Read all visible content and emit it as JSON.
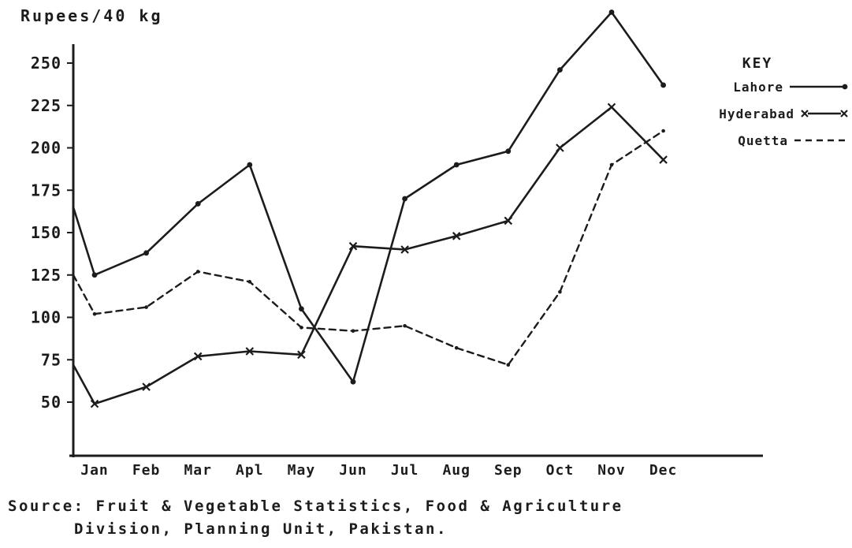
{
  "title": "Rupees/40 kg",
  "colors": {
    "ink": "#1c1c1c",
    "background": "#ffffff"
  },
  "legend": {
    "heading": "KEY",
    "entries": [
      {
        "label": "Lahore",
        "style": "solid-dot"
      },
      {
        "label": "Hyderabad",
        "style": "solid-x"
      },
      {
        "label": "Quetta",
        "style": "dashed"
      }
    ]
  },
  "source": {
    "line1": "Source: Fruit & Vegetable Statistics, Food & Agriculture",
    "line2": "Division, Planning Unit, Pakistan."
  },
  "chart_data": {
    "type": "line",
    "title": "Rupees/40 kg",
    "xlabel": "",
    "ylabel": "Rupees/40 kg",
    "categories": [
      "Jan",
      "Feb",
      "Mar",
      "Apl",
      "May",
      "Jun",
      "Jul",
      "Aug",
      "Sep",
      "Oct",
      "Nov",
      "Dec"
    ],
    "yticks": [
      250,
      225,
      200,
      175,
      150,
      125,
      100,
      75,
      50
    ],
    "ylim": [
      25,
      285
    ],
    "grid": false,
    "legend_position": "right",
    "series": [
      {
        "name": "Lahore",
        "line": "solid",
        "marker": "dot",
        "axis_start": 165,
        "values": [
          125,
          138,
          167,
          190,
          105,
          62,
          170,
          190,
          198,
          246,
          280,
          237
        ]
      },
      {
        "name": "Hyderabad",
        "line": "solid",
        "marker": "x",
        "axis_start": 72,
        "values": [
          49,
          59,
          77,
          80,
          78,
          142,
          140,
          148,
          157,
          200,
          224,
          193
        ]
      },
      {
        "name": "Quetta",
        "line": "dashed",
        "marker": "small-dot",
        "axis_start": 125,
        "values": [
          102,
          106,
          127,
          121,
          94,
          92,
          95,
          82,
          72,
          115,
          190,
          210
        ]
      }
    ]
  }
}
